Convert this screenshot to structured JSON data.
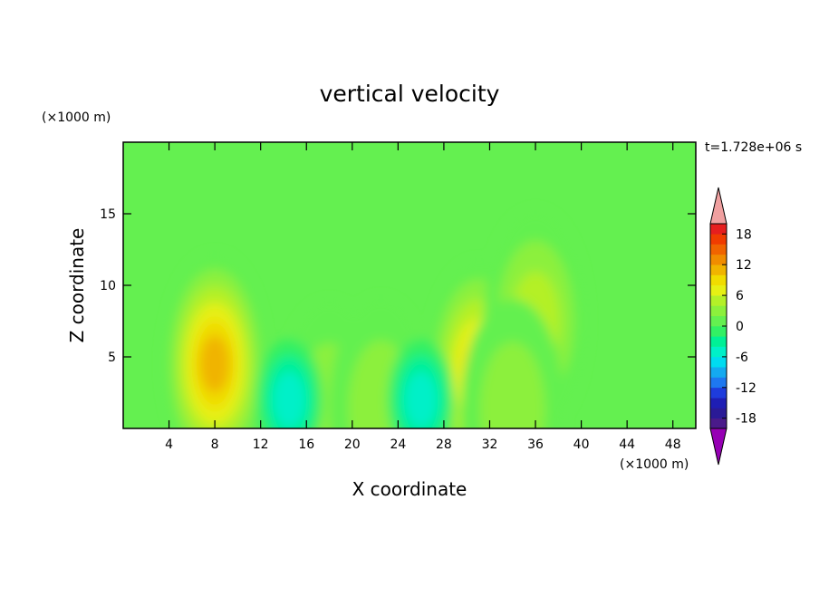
{
  "chart_data": {
    "type": "heatmap",
    "title": "vertical velocity",
    "xlabel": "X coordinate",
    "ylabel": "Z coordinate",
    "x_unit": "(×1000 m)",
    "y_unit": "(×1000 m)",
    "time_label": "t=1.728e+06 s",
    "xlim": [
      0,
      50
    ],
    "ylim": [
      0,
      20
    ],
    "x_ticks": [
      4,
      8,
      12,
      16,
      20,
      24,
      28,
      32,
      36,
      40,
      44,
      48
    ],
    "y_ticks": [
      5,
      10,
      15
    ],
    "background_level": 0,
    "features": [
      {
        "kind": "updraft",
        "x": 8,
        "z": 4.5,
        "peak": 12
      },
      {
        "kind": "updraft",
        "x": 31,
        "z": 4,
        "peak": 10
      },
      {
        "kind": "updraft",
        "x": 36,
        "z": 7.5,
        "peak": 6
      },
      {
        "kind": "updraft",
        "x": 18,
        "z": 1.2,
        "peak": 5
      },
      {
        "kind": "updraft",
        "x": 22.5,
        "z": 1.4,
        "peak": 5
      },
      {
        "kind": "updraft",
        "x": 34,
        "z": 1.3,
        "peak": 5
      },
      {
        "kind": "downdraft",
        "x": 26,
        "z": 2,
        "peak": -6
      },
      {
        "kind": "downdraft",
        "x": 14.5,
        "z": 2,
        "peak": -6
      }
    ],
    "colorbar": {
      "levels": [
        -20,
        -18,
        -16,
        -14,
        -12,
        -10,
        -8,
        -6,
        -4,
        -2,
        0,
        2,
        4,
        6,
        8,
        10,
        12,
        14,
        16,
        18,
        20
      ],
      "tick_labels": [
        "18",
        "12",
        "6",
        "0",
        "-6",
        "-12",
        "-18"
      ],
      "tick_values": [
        18,
        12,
        6,
        0,
        -6,
        -12,
        -18
      ],
      "colors": [
        "#4a1a8a",
        "#2a1a96",
        "#1e1eb4",
        "#1e3cdc",
        "#1e78f0",
        "#14aaf0",
        "#00dcf0",
        "#00f0c8",
        "#00f096",
        "#32f064",
        "#64f050",
        "#8cf03c",
        "#b4f028",
        "#e6f014",
        "#f0dc00",
        "#f0b400",
        "#f08c00",
        "#f06400",
        "#f03c00",
        "#e61e1e"
      ],
      "under_color": "#9600b4",
      "over_color": "#f0a0a0"
    }
  }
}
